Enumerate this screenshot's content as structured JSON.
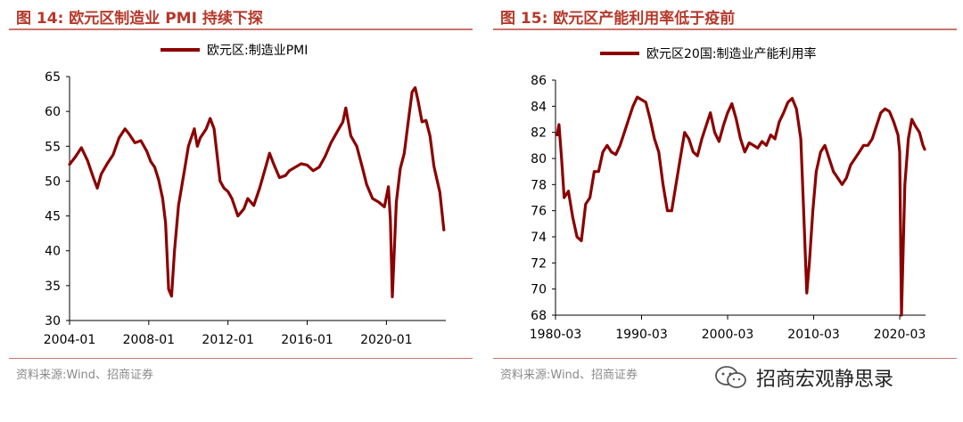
{
  "charts": [
    {
      "title": "图 14:  欧元区制造业 PMI 持续下探",
      "source": "资料来源:Wind、招商证券",
      "chart_data": {
        "type": "line",
        "ylim": [
          30,
          65
        ],
        "yticks": [
          30,
          35,
          40,
          45,
          50,
          55,
          60,
          65
        ],
        "xrange": [
          2004.0,
          2023.0
        ],
        "xticks": [
          {
            "v": 2004.0,
            "label": "2004-01"
          },
          {
            "v": 2008.0,
            "label": "2008-01"
          },
          {
            "v": 2012.0,
            "label": "2012-01"
          },
          {
            "v": 2016.0,
            "label": "2016-01"
          },
          {
            "v": 2020.0,
            "label": "2020-01"
          }
        ],
        "color": "#8b0000",
        "series": [
          {
            "name": "欧元区:制造业PMI",
            "x": [
              2004.0,
              2004.3,
              2004.6,
              2004.9,
              2005.2,
              2005.4,
              2005.6,
              2005.9,
              2006.2,
              2006.5,
              2006.8,
              2007.0,
              2007.3,
              2007.6,
              2007.9,
              2008.1,
              2008.3,
              2008.5,
              2008.7,
              2008.85,
              2009.0,
              2009.15,
              2009.3,
              2009.5,
              2009.8,
              2010.0,
              2010.3,
              2010.45,
              2010.6,
              2010.9,
              2011.1,
              2011.3,
              2011.6,
              2011.8,
              2012.0,
              2012.2,
              2012.5,
              2012.8,
              2013.0,
              2013.3,
              2013.6,
              2013.9,
              2014.1,
              2014.3,
              2014.6,
              2014.9,
              2015.1,
              2015.4,
              2015.7,
              2016.0,
              2016.3,
              2016.6,
              2016.9,
              2017.2,
              2017.5,
              2017.8,
              2017.95,
              2018.2,
              2018.5,
              2018.8,
              2019.0,
              2019.3,
              2019.6,
              2019.9,
              2020.1,
              2020.2,
              2020.3,
              2020.5,
              2020.7,
              2020.9,
              2021.1,
              2021.3,
              2021.45,
              2021.6,
              2021.8,
              2022.0,
              2022.2,
              2022.4,
              2022.7,
              2022.9
            ],
            "y": [
              52.4,
              53.5,
              54.8,
              53.0,
              50.5,
              49.0,
              51.0,
              52.5,
              53.8,
              56.2,
              57.5,
              56.8,
              55.5,
              55.8,
              54.3,
              52.8,
              52.0,
              50.2,
              47.5,
              44.0,
              34.5,
              33.5,
              40.0,
              46.5,
              51.5,
              55.0,
              57.5,
              55.0,
              56.2,
              57.5,
              59.0,
              57.5,
              50.0,
              49.0,
              48.5,
              47.5,
              45.0,
              46.0,
              47.5,
              46.5,
              49.0,
              52.0,
              54.0,
              52.5,
              50.5,
              50.8,
              51.5,
              52.0,
              52.5,
              52.3,
              51.5,
              52.0,
              53.5,
              55.5,
              57.0,
              58.5,
              60.5,
              56.5,
              55.0,
              51.8,
              49.5,
              47.5,
              47.0,
              46.3,
              49.2,
              44.5,
              33.4,
              47.0,
              51.8,
              54.0,
              58.5,
              62.8,
              63.4,
              61.5,
              58.5,
              58.7,
              56.5,
              52.1,
              48.4,
              43.0
            ]
          }
        ]
      }
    },
    {
      "title": "图 15:  欧元区产能利用率低于疫前",
      "source": "资料来源:Wind、招商证券",
      "chart_data": {
        "type": "line",
        "ylim": [
          68,
          86
        ],
        "yticks": [
          68,
          70,
          72,
          74,
          76,
          78,
          80,
          82,
          84,
          86
        ],
        "xrange": [
          1980.0,
          2023.0
        ],
        "xticks": [
          {
            "v": 1980.0,
            "label": "1980-03"
          },
          {
            "v": 1990.0,
            "label": "1990-03"
          },
          {
            "v": 2000.0,
            "label": "2000-03"
          },
          {
            "v": 2010.0,
            "label": "2010-03"
          },
          {
            "v": 2020.0,
            "label": "2020-03"
          }
        ],
        "color": "#8b0000",
        "series": [
          {
            "name": "欧元区20国:制造业产能利用率",
            "x": [
              1980.2,
              1980.4,
              1980.7,
              1981.0,
              1981.5,
              1982.0,
              1982.5,
              1983.0,
              1983.5,
              1984.0,
              1984.5,
              1985.0,
              1985.5,
              1986.0,
              1986.5,
              1987.0,
              1987.5,
              1988.0,
              1988.5,
              1989.0,
              1989.5,
              1990.0,
              1990.5,
              1991.0,
              1991.5,
              1992.0,
              1992.5,
              1993.0,
              1993.5,
              1994.0,
              1994.5,
              1995.0,
              1995.5,
              1996.0,
              1996.5,
              1997.0,
              1997.5,
              1998.0,
              1998.5,
              1999.0,
              1999.5,
              2000.0,
              2000.5,
              2001.0,
              2001.5,
              2002.0,
              2002.5,
              2003.0,
              2003.5,
              2004.0,
              2004.5,
              2005.0,
              2005.5,
              2006.0,
              2006.5,
              2007.0,
              2007.5,
              2008.0,
              2008.5,
              2008.8,
              2009.2,
              2009.5,
              2009.9,
              2010.3,
              2010.8,
              2011.3,
              2011.8,
              2012.3,
              2012.8,
              2013.3,
              2013.8,
              2014.3,
              2014.8,
              2015.3,
              2015.8,
              2016.3,
              2016.8,
              2017.3,
              2017.8,
              2018.3,
              2018.8,
              2019.3,
              2019.8,
              2020.0,
              2020.2,
              2020.6,
              2021.0,
              2021.4,
              2021.8,
              2022.3,
              2022.7,
              2022.9
            ],
            "y": [
              81.8,
              82.6,
              80.0,
              77.0,
              77.5,
              75.5,
              74.0,
              73.7,
              76.5,
              77.0,
              79.0,
              79.0,
              80.5,
              81.0,
              80.5,
              80.3,
              81.0,
              82.0,
              83.0,
              84.0,
              84.7,
              84.5,
              84.3,
              83.0,
              81.5,
              80.5,
              78.0,
              76.0,
              76.0,
              78.0,
              80.0,
              82.0,
              81.5,
              80.5,
              80.2,
              81.5,
              82.5,
              83.5,
              82.0,
              81.3,
              82.5,
              83.5,
              84.2,
              83.0,
              81.5,
              80.5,
              81.2,
              81.0,
              80.8,
              81.3,
              81.0,
              81.8,
              81.5,
              82.8,
              83.5,
              84.3,
              84.6,
              83.8,
              81.5,
              76.5,
              69.7,
              72.0,
              76.0,
              79.0,
              80.5,
              81.0,
              80.0,
              79.0,
              78.5,
              78.0,
              78.5,
              79.5,
              80.0,
              80.5,
              81.0,
              81.0,
              81.5,
              82.5,
              83.5,
              83.8,
              83.6,
              82.8,
              81.8,
              80.5,
              68.0,
              78.0,
              81.5,
              83.0,
              82.5,
              82.0,
              81.0,
              80.7
            ]
          }
        ]
      }
    }
  ],
  "watermark": {
    "text": "招商宏观静思录",
    "icon": "wechat-icon"
  }
}
